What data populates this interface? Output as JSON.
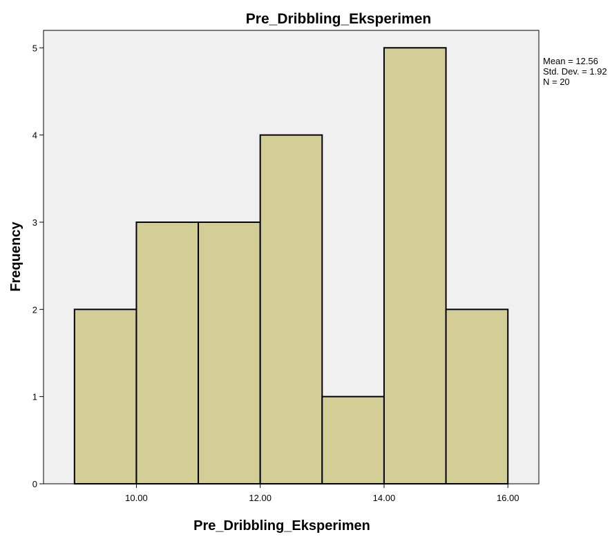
{
  "chart_data": {
    "type": "bar",
    "subtype": "histogram",
    "title": "Pre_Dribbling_Eksperimen",
    "xlabel": "Pre_Dribbling_Eksperimen",
    "ylabel": "Frequency",
    "bins": [
      {
        "start": 9,
        "end": 10,
        "count": 2
      },
      {
        "start": 10,
        "end": 11,
        "count": 3
      },
      {
        "start": 11,
        "end": 12,
        "count": 3
      },
      {
        "start": 12,
        "end": 13,
        "count": 4
      },
      {
        "start": 13,
        "end": 14,
        "count": 1
      },
      {
        "start": 14,
        "end": 15,
        "count": 5
      },
      {
        "start": 15,
        "end": 16,
        "count": 2
      }
    ],
    "xlim": [
      8.5,
      16.5
    ],
    "ylim": [
      0,
      5.2
    ],
    "x_ticks": [
      10,
      12,
      14,
      16
    ],
    "x_tick_labels": [
      "10.00",
      "12.00",
      "14.00",
      "16.00"
    ],
    "y_ticks": [
      0,
      1,
      2,
      3,
      4,
      5
    ],
    "y_tick_labels": [
      "0",
      "1",
      "2",
      "3",
      "4",
      "5"
    ],
    "grid": false,
    "bar_color": "#d3cd96",
    "bar_edge_color": "#000000",
    "plot_background": "#f0f0f0",
    "stats": [
      "Mean = 12.56",
      "Std. Dev. = 1.92",
      "N = 20"
    ]
  }
}
